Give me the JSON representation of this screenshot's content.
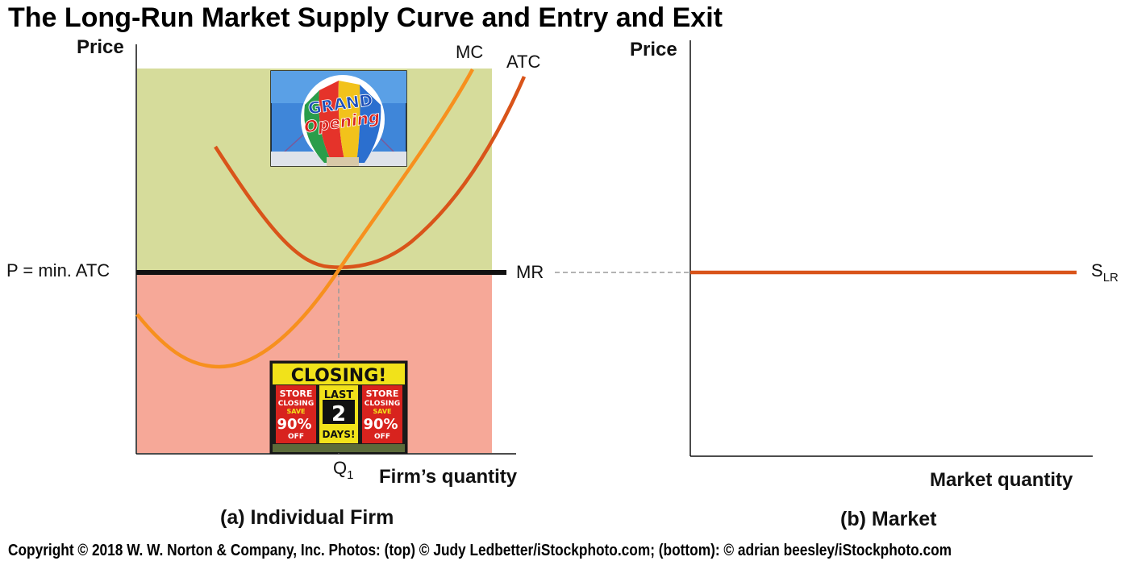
{
  "title": "The Long-Run Market Supply Curve and Entry and Exit",
  "colors": {
    "profit_region": "#d6dc9b",
    "loss_region": "#f6a898",
    "mc": "#f7901e",
    "atc": "#d9541a",
    "mr": "#111111",
    "slr": "#d9541a",
    "dashed": "#9a9a9a"
  },
  "panel_a": {
    "caption": "(a) Individual Firm",
    "y_axis_label": "Price",
    "x_axis_label": "Firm’s quantity",
    "price_label": "P = min. ATC",
    "q_label": "Q",
    "q_subscript": "1",
    "mc_label": "MC",
    "atc_label": "ATC",
    "mr_label": "MR",
    "photo_top": {
      "icon": "grand-opening-balloon-photo",
      "line1": "GRAND",
      "line2": "Opening"
    },
    "photo_bottom": {
      "icon": "store-closing-signs-photo",
      "banner": "CLOSING!",
      "sign_left": [
        "STORE",
        "CLOSING",
        "SAVE",
        "90%",
        "OFF"
      ],
      "sign_mid": [
        "LAST",
        "2",
        "DAYS!"
      ],
      "sign_right": [
        "STORE",
        "CLOSING",
        "SAVE",
        "90%",
        "OFF"
      ]
    }
  },
  "panel_b": {
    "caption": "(b) Market",
    "y_axis_label": "Price",
    "x_axis_label": "Market quantity",
    "slr_label": "S",
    "slr_subscript": "LR"
  },
  "copyright": "Copyright © 2018 W. W. Norton & Company, Inc. Photos: (top) © Judy Ledbetter/iStockphoto.com; (bottom): © adrian beesley/iStockphoto.com"
}
